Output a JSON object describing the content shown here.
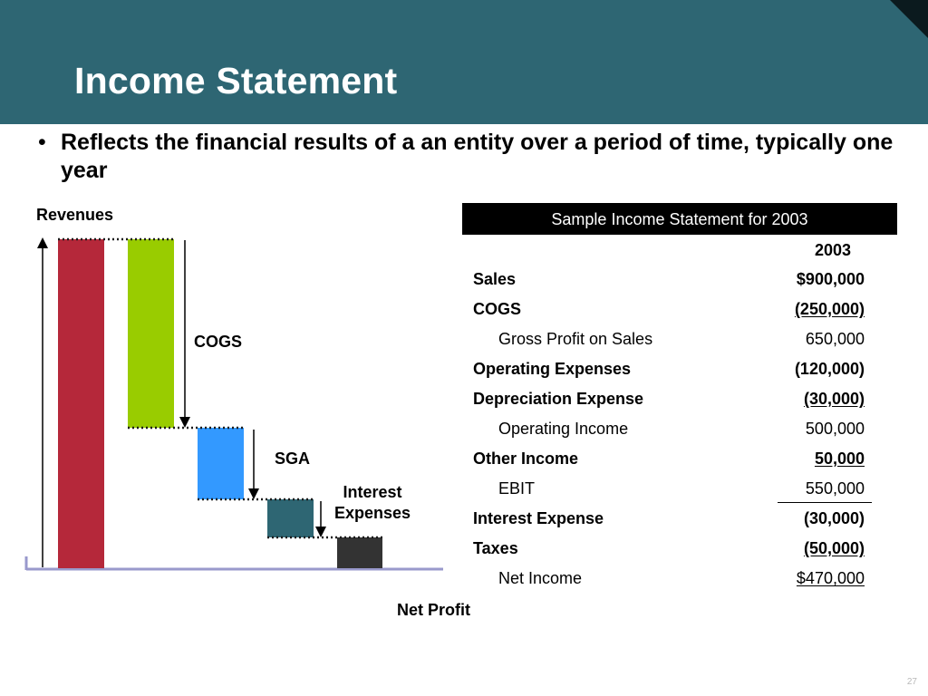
{
  "slide": {
    "title": "Income Statement",
    "bullet": "Reflects the financial results of a an entity over a period of time, typically one year",
    "bullet_marker": "•",
    "page_number": "27"
  },
  "colors": {
    "header": "#2e6673",
    "revenues_bar": "#b5283a",
    "cogs_bar": "#99cc00",
    "sga_bar": "#3399ff",
    "interest_bar": "#2e6673",
    "net_profit_bar": "#333333"
  },
  "waterfall": {
    "labels": {
      "revenues": "Revenues",
      "cogs": "COGS",
      "sga": "SGA",
      "interest_line1": "Interest",
      "interest_line2": "Expenses",
      "net_profit": "Net Profit"
    }
  },
  "table": {
    "heading": "Sample Income Statement for 2003",
    "year": "2003",
    "rows": [
      {
        "label": "Sales",
        "value": "$900,000"
      },
      {
        "label": "COGS",
        "value": "(250,000)"
      },
      {
        "label": "Gross Profit on Sales",
        "value": "650,000"
      },
      {
        "label": "Operating Expenses",
        "value": "(120,000)"
      },
      {
        "label": "Depreciation Expense",
        "value": "(30,000)"
      },
      {
        "label": "Operating Income",
        "value": "500,000"
      },
      {
        "label": "Other Income",
        "value": "50,000"
      },
      {
        "label": "EBIT",
        "value": "550,000"
      },
      {
        "label": "Interest Expense",
        "value": "(30,000)"
      },
      {
        "label": "Taxes",
        "value": "(50,000)"
      },
      {
        "label": "Net Income",
        "value": "$470,000"
      }
    ]
  }
}
